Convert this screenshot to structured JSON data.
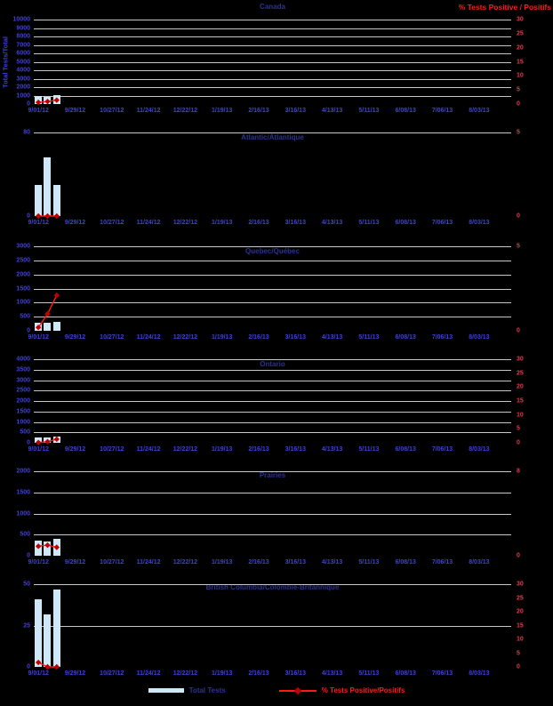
{
  "page_title": "Respiratory virus test surveillance chart (6 regional panels)",
  "left_axis_title": "Total Tests/Total",
  "right_axis_title": "% Tests Positive / Positifs",
  "legend": {
    "bar_label": "Total Tests",
    "line_label": "% Tests Positive/Positifs"
  },
  "colors": {
    "background": "#000000",
    "bar_fill": "#cfe8f8",
    "line_color": "#ff1a1a",
    "marker_color": "#c00000",
    "gridline_color": "#c8c8c8",
    "left_tick_color": "#4040d9",
    "right_tick_color": "#e83a4f",
    "title_color": "#2e3192"
  },
  "x_axis": {
    "tick_labels": [
      "9/01/12",
      "9/29/12",
      "10/27/12",
      "11/24/12",
      "12/22/12",
      "1/19/13",
      "2/16/13",
      "3/16/13",
      "4/13/13",
      "5/11/13",
      "6/08/13",
      "7/06/13",
      "8/03/13"
    ],
    "weekly_slots": 52,
    "label_every_n_slots": 4
  },
  "chart_data": [
    {
      "type": "bar+line",
      "title": "Canada",
      "left_axis": {
        "min": 0,
        "max": 10000,
        "tick_labels": [
          10000,
          9000,
          8000,
          7000,
          6000,
          5000,
          4000,
          3000,
          2000,
          1000,
          0
        ],
        "gridlines": [
          10000,
          9000,
          8000,
          7000,
          6000,
          5000,
          4000,
          3000,
          2000,
          1000
        ]
      },
      "right_axis": {
        "min": 0,
        "max": 30,
        "tick_labels": [
          30,
          25,
          20,
          15,
          10,
          5,
          0
        ]
      },
      "bar_slots": [
        0,
        1,
        2
      ],
      "bars": [
        950,
        900,
        1050
      ],
      "line_pct": [
        0.6,
        0.9,
        1.4
      ]
    },
    {
      "type": "bar+line",
      "title": "Atlantic/Atlantique",
      "left_axis": {
        "min": 0,
        "max": 80,
        "tick_labels": [
          80,
          0
        ],
        "gridlines": [
          80
        ]
      },
      "right_axis": {
        "min": 0,
        "max": 5,
        "tick_labels": [
          5,
          0
        ]
      },
      "bar_slots": [
        0,
        1,
        2
      ],
      "bars": [
        30,
        56,
        30
      ],
      "line_pct": [
        0,
        0,
        0
      ]
    },
    {
      "type": "bar+line",
      "title": "Quebec/Québec",
      "left_axis": {
        "min": 0,
        "max": 3000,
        "tick_labels": [
          3000,
          2500,
          2000,
          1500,
          1000,
          500,
          0
        ],
        "gridlines": [
          3000,
          2500,
          2000,
          1500,
          1000,
          500
        ]
      },
      "right_axis": {
        "min": 0,
        "max": 5,
        "tick_labels": [
          5,
          0
        ]
      },
      "bar_slots": [
        0,
        1,
        2
      ],
      "bars": [
        280,
        300,
        330
      ],
      "line_pct": [
        0.2,
        1.0,
        2.1
      ]
    },
    {
      "type": "bar+line",
      "title": "Ontario",
      "left_axis": {
        "min": 0,
        "max": 4000,
        "tick_labels": [
          4000,
          3500,
          3000,
          2500,
          2000,
          1500,
          1000,
          500,
          0
        ],
        "gridlines": [
          4000,
          3500,
          3000,
          2500,
          2000,
          1500,
          1000,
          500
        ]
      },
      "right_axis": {
        "min": 0,
        "max": 30,
        "tick_labels": [
          30,
          25,
          20,
          15,
          10,
          5,
          0
        ]
      },
      "bar_slots": [
        0,
        1,
        2
      ],
      "bars": [
        270,
        240,
        300
      ],
      "line_pct": [
        0.1,
        0.4,
        1.3
      ]
    },
    {
      "type": "bar+line",
      "title": "Prairies",
      "left_axis": {
        "min": 0,
        "max": 2000,
        "tick_labels": [
          2000,
          1500,
          1000,
          500,
          0
        ],
        "gridlines": [
          2000,
          1500,
          1000,
          500
        ]
      },
      "right_axis": {
        "min": 0,
        "max": 8,
        "tick_labels": [
          8,
          0
        ]
      },
      "bar_slots": [
        0,
        1,
        2
      ],
      "bars": [
        350,
        340,
        400
      ],
      "line_pct": [
        0.9,
        1.0,
        0.8
      ]
    },
    {
      "type": "bar+line",
      "title": "British Columbia/Colombie-Britannique",
      "left_axis": {
        "min": 0,
        "max": 50,
        "tick_labels": [
          50,
          25,
          0
        ],
        "gridlines": [
          50,
          25
        ]
      },
      "right_axis": {
        "min": 0,
        "max": 30,
        "tick_labels": [
          30,
          25,
          20,
          15,
          10,
          5,
          0
        ]
      },
      "bar_slots": [
        0,
        1,
        2
      ],
      "bars": [
        41,
        32,
        47
      ],
      "line_pct": [
        1.6,
        0,
        0
      ]
    }
  ]
}
